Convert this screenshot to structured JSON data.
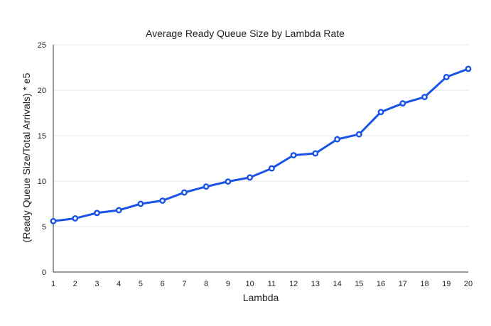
{
  "chart_data": {
    "type": "line",
    "title": "Average Ready Queue Size by Lambda Rate",
    "xlabel": "Lambda",
    "ylabel": "(Ready Queue Size/Total Arrivals) * e5",
    "x": [
      1,
      2,
      3,
      4,
      5,
      6,
      7,
      8,
      9,
      10,
      11,
      12,
      13,
      14,
      15,
      16,
      17,
      18,
      19,
      20
    ],
    "series": [
      {
        "values": [
          5.6,
          5.9,
          6.5,
          6.8,
          7.5,
          7.85,
          8.75,
          9.4,
          9.95,
          10.4,
          11.4,
          12.85,
          13.05,
          14.6,
          15.15,
          17.6,
          18.55,
          19.25,
          21.45,
          22.35
        ],
        "color": "#1a53e6"
      }
    ],
    "xlim": [
      1,
      20
    ],
    "ylim": [
      0,
      25
    ],
    "yticks": [
      0,
      5,
      10,
      15,
      20,
      25
    ],
    "grid": true,
    "legend": "none"
  }
}
